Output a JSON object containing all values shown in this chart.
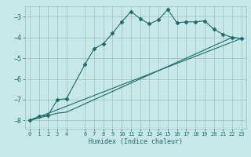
{
  "xlabel": "Humidex (Indice chaleur)",
  "background_color": "#c8e8e8",
  "grid_color": "#9bbfbf",
  "line_color": "#1a6b6b",
  "xlim": [
    -0.5,
    23.5
  ],
  "ylim": [
    -8.4,
    -2.5
  ],
  "xticks": [
    0,
    1,
    2,
    3,
    4,
    6,
    7,
    8,
    9,
    10,
    11,
    12,
    13,
    14,
    15,
    16,
    17,
    18,
    19,
    20,
    21,
    22,
    23
  ],
  "yticks": [
    -8,
    -7,
    -6,
    -5,
    -4,
    -3
  ],
  "series": [
    {
      "x": [
        0,
        1,
        2,
        3,
        4,
        6,
        7,
        8,
        9,
        10,
        11,
        12,
        13,
        14,
        15,
        16,
        17,
        18,
        19,
        20,
        21,
        22,
        23
      ],
      "y": [
        -8.0,
        -7.8,
        -7.75,
        -7.0,
        -6.95,
        -5.3,
        -4.55,
        -4.3,
        -3.8,
        -3.25,
        -2.75,
        -3.1,
        -3.35,
        -3.15,
        -2.65,
        -3.3,
        -3.25,
        -3.25,
        -3.2,
        -3.6,
        -3.85,
        -4.0,
        -4.05
      ],
      "marker": "D",
      "markersize": 2.5
    },
    {
      "x": [
        0,
        3,
        4,
        22,
        23
      ],
      "y": [
        -8.0,
        -7.65,
        -7.6,
        -4.0,
        -4.05
      ],
      "marker": null
    },
    {
      "x": [
        0,
        23
      ],
      "y": [
        -8.0,
        -4.05
      ],
      "marker": null
    }
  ]
}
